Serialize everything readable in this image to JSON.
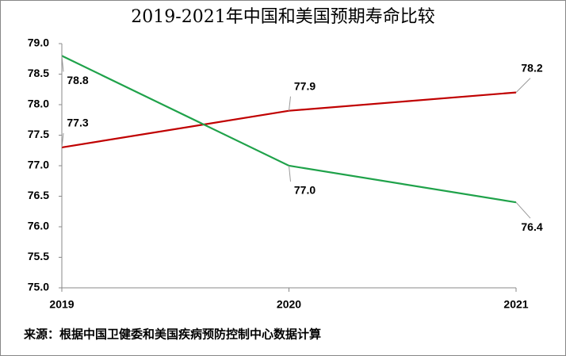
{
  "chart_data": {
    "type": "line",
    "title": "2019-2021年中国和美国预期寿命比较",
    "note": "来源：根据中国卫健委和美国疾病预防控制中心数据计算",
    "x": [
      2019,
      2020,
      2021
    ],
    "xlim": [
      2019,
      2021
    ],
    "xticks": [
      2019,
      2020,
      2021
    ],
    "ylim": [
      75,
      79
    ],
    "yticks": [
      {
        "value": 75,
        "label": "75.0"
      },
      {
        "value": 75.5,
        "label": "75.5"
      },
      {
        "value": 76,
        "label": "76.0"
      },
      {
        "value": 76.5,
        "label": "76.5"
      },
      {
        "value": 77,
        "label": "77.0"
      },
      {
        "value": 77.5,
        "label": "77.5"
      },
      {
        "value": 78,
        "label": "78.0"
      },
      {
        "value": 78.5,
        "label": "78.5"
      },
      {
        "value": 79,
        "label": "79.0"
      }
    ],
    "series": [
      {
        "color": "#c00000",
        "values": [
          77.3,
          77.9,
          78.2
        ],
        "value_labels": [
          "77.3",
          "77.9",
          "78.2"
        ]
      },
      {
        "color": "#1fa24a",
        "values": [
          78.8,
          77.0,
          76.4
        ],
        "value_labels": [
          "78.8",
          "77.0",
          "76.4"
        ]
      }
    ]
  }
}
